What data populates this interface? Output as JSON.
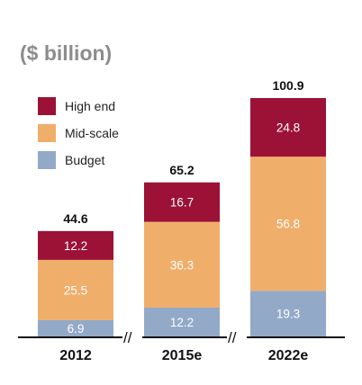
{
  "chart_data": {
    "type": "bar",
    "stacked": true,
    "unit_label": "($ billion)",
    "categories": [
      "2012",
      "2015e",
      "2022e"
    ],
    "series": [
      {
        "name": "Budget",
        "color": "#93a9c8",
        "values": [
          6.9,
          12.2,
          19.3
        ]
      },
      {
        "name": "Mid-scale",
        "color": "#f0ae6b",
        "values": [
          25.5,
          36.3,
          56.8
        ]
      },
      {
        "name": "High end",
        "color": "#9b1236",
        "values": [
          12.2,
          16.7,
          24.8
        ]
      }
    ],
    "totals": [
      "44.6",
      "65.2",
      "100.9"
    ],
    "legend": [
      "High end",
      "Mid-scale",
      "Budget"
    ],
    "axis_break_marks": "//",
    "ylim": [
      0,
      100.9
    ]
  }
}
